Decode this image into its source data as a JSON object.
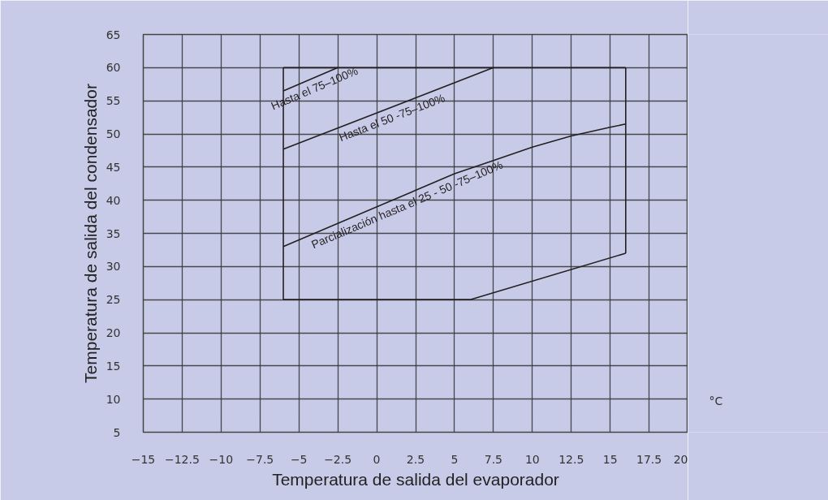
{
  "chart_data": {
    "type": "line",
    "xlabel": "Temperatura de salida del evaporador",
    "ylabel": "Temperatura de salida del condensador",
    "xlim": [
      -15,
      20
    ],
    "ylim": [
      5,
      65
    ],
    "xticks": [
      -15,
      -12.5,
      -10,
      -7.5,
      -5,
      -2.5,
      0,
      2.5,
      5,
      7.5,
      10,
      12.5,
      15,
      17.5,
      20
    ],
    "yticks": [
      5,
      10,
      15,
      20,
      25,
      30,
      35,
      40,
      45,
      50,
      55,
      60,
      65
    ],
    "grid": true,
    "marker": "none",
    "line_style": "solid",
    "legend": false,
    "annotations": [
      "°C"
    ],
    "series": [
      {
        "name": "Hasta el 75–100%",
        "color": "#231f20",
        "x": [
          -6,
          -2.5
        ],
        "values": [
          56.5,
          60
        ]
      },
      {
        "name": "Hasta el 50 -75–100%",
        "color": "#231f20",
        "x": [
          -6,
          7.5
        ],
        "values": [
          47.7,
          60
        ]
      },
      {
        "name": "Parcialización hasta el 25 - 50 -75–100%",
        "color": "#231f20",
        "x": [
          -6,
          5,
          7.5,
          10,
          12.5,
          15,
          16
        ],
        "values": [
          33,
          44,
          46,
          48,
          49.7,
          51,
          51.5
        ]
      },
      {
        "type": "line",
        "color": "#231f20",
        "x": [
          -6,
          16
        ],
        "values": [
          60,
          60
        ]
      },
      {
        "type": "line",
        "color": "#231f20",
        "x": [
          -6,
          6,
          16
        ],
        "values": [
          25,
          25,
          32
        ]
      },
      {
        "type": "line",
        "color": "#231f20",
        "x": [
          -6,
          -6
        ],
        "values": [
          25,
          60
        ]
      },
      {
        "type": "line",
        "color": "#231f20",
        "x": [
          16,
          16
        ],
        "values": [
          32,
          60
        ]
      }
    ]
  }
}
